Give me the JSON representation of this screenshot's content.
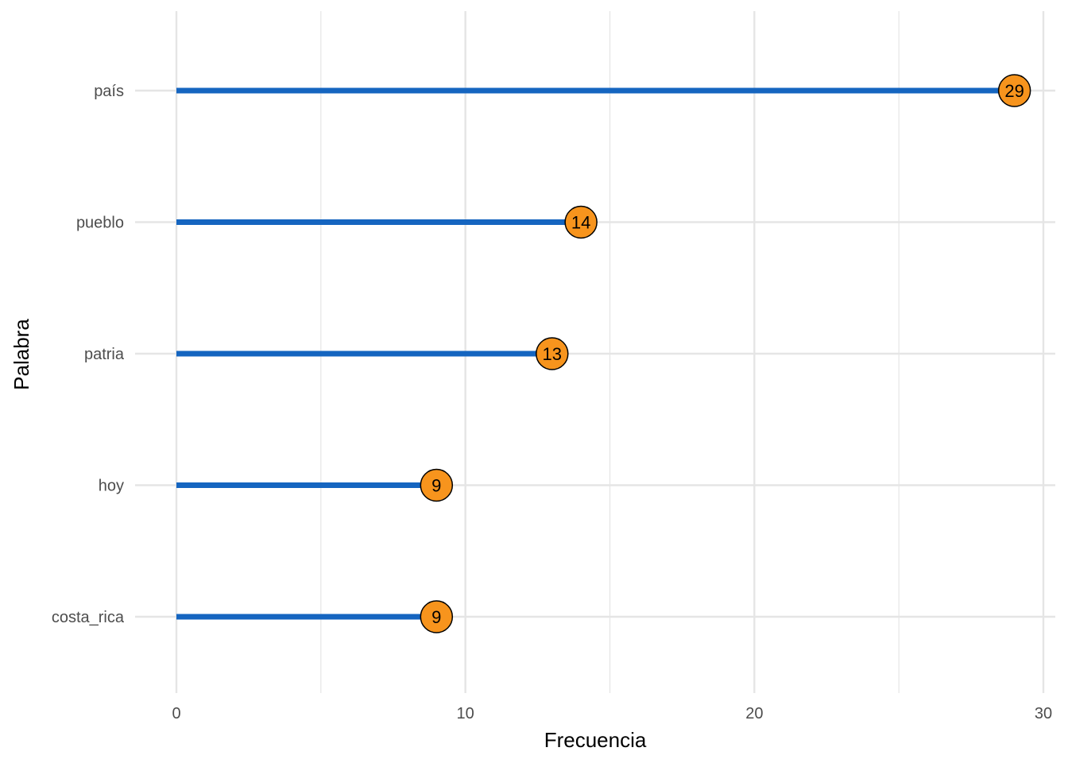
{
  "chart_data": {
    "type": "lollipop",
    "xlabel": "Frecuencia",
    "ylabel": "Palabra",
    "xlim": [
      0,
      30
    ],
    "x_ticks": [
      0,
      10,
      20,
      30
    ],
    "x_minor_ticks": [
      5,
      15,
      25
    ],
    "grid": true,
    "categories": [
      "país",
      "pueblo",
      "patria",
      "hoy",
      "costa_rica"
    ],
    "values": [
      29,
      14,
      13,
      9,
      9
    ],
    "labels": [
      "29",
      "14",
      "13",
      "9",
      "9"
    ],
    "colors": {
      "stem": "#1565c0",
      "point_fill": "#f7941d",
      "point_stroke": "#000000",
      "grid": "#e5e5e5"
    }
  }
}
